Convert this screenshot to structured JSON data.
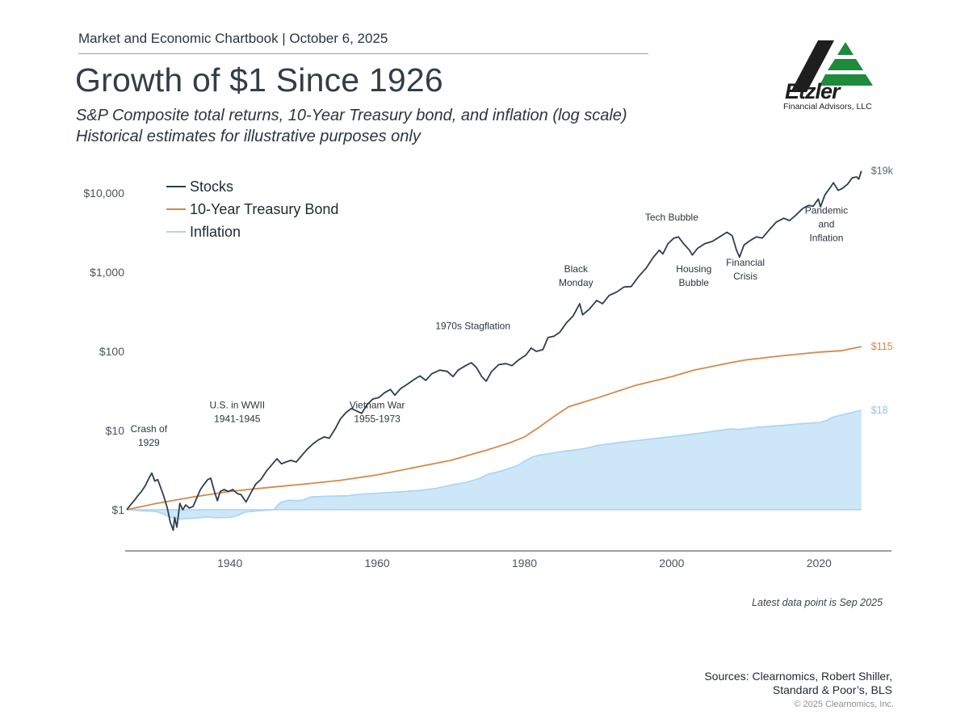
{
  "header": {
    "chartbook": "Market and Economic Chartbook | October 6, 2025",
    "title": "Growth of $1 Since 1926",
    "subtitle_line1": "S&P Composite total returns, 10-Year Treasury bond, and inflation (log scale)",
    "subtitle_line2": "Historical estimates for illustrative purposes only"
  },
  "logo": {
    "name": "Etzler",
    "caption": "Financial Advisors, LLC",
    "colors": {
      "dark": "#1e1e1e",
      "green": "#1e8a3c"
    }
  },
  "footer": {
    "latest_note": "Latest data point is Sep 2025",
    "sources_line1": "Sources: Clearnomics, Robert Shiller,",
    "sources_line2": "Standard & Poor’s, BLS",
    "copyright": "© 2025 Clearnomics, Inc."
  },
  "chart_data": {
    "type": "line",
    "title": "Growth of $1 Since 1926",
    "xlabel": "",
    "ylabel": "",
    "yscale": "log",
    "ylim": [
      0.45,
      22000
    ],
    "xlim": [
      1926,
      2030
    ],
    "grid": false,
    "legend_position": "top-left",
    "x_ticks": [
      1940,
      1960,
      1980,
      2000,
      2020
    ],
    "y_ticks": [
      {
        "value": 1,
        "label": "$1"
      },
      {
        "value": 10,
        "label": "$10"
      },
      {
        "value": 100,
        "label": "$100"
      },
      {
        "value": 1000,
        "label": "$1,000"
      },
      {
        "value": 10000,
        "label": "$10,000"
      }
    ],
    "series": [
      {
        "name": "Stocks",
        "color": "#2c3e50",
        "style": "line",
        "end_label": "$19k",
        "points": [
          [
            1926.0,
            1.0
          ],
          [
            1926.5,
            1.15
          ],
          [
            1927.0,
            1.3
          ],
          [
            1927.5,
            1.5
          ],
          [
            1928.0,
            1.7
          ],
          [
            1928.5,
            2.0
          ],
          [
            1929.0,
            2.5
          ],
          [
            1929.4,
            2.9
          ],
          [
            1929.8,
            2.3
          ],
          [
            1930.2,
            2.4
          ],
          [
            1930.6,
            1.9
          ],
          [
            1931.0,
            1.5
          ],
          [
            1931.5,
            1.05
          ],
          [
            1931.9,
            0.7
          ],
          [
            1932.3,
            0.55
          ],
          [
            1932.5,
            0.8
          ],
          [
            1932.8,
            0.6
          ],
          [
            1933.2,
            1.2
          ],
          [
            1933.6,
            1.0
          ],
          [
            1934.0,
            1.15
          ],
          [
            1934.5,
            1.05
          ],
          [
            1935.0,
            1.1
          ],
          [
            1935.5,
            1.4
          ],
          [
            1936.0,
            1.8
          ],
          [
            1936.5,
            2.1
          ],
          [
            1937.0,
            2.4
          ],
          [
            1937.4,
            2.5
          ],
          [
            1937.9,
            1.7
          ],
          [
            1938.3,
            1.3
          ],
          [
            1938.7,
            1.7
          ],
          [
            1939.2,
            1.8
          ],
          [
            1939.8,
            1.7
          ],
          [
            1940.4,
            1.8
          ],
          [
            1941.0,
            1.6
          ],
          [
            1941.5,
            1.55
          ],
          [
            1942.2,
            1.25
          ],
          [
            1942.8,
            1.6
          ],
          [
            1943.5,
            2.1
          ],
          [
            1944.2,
            2.4
          ],
          [
            1945.0,
            3.1
          ],
          [
            1945.8,
            3.8
          ],
          [
            1946.4,
            4.4
          ],
          [
            1947.0,
            3.8
          ],
          [
            1947.6,
            4.0
          ],
          [
            1948.3,
            4.2
          ],
          [
            1949.0,
            4.0
          ],
          [
            1949.8,
            4.9
          ],
          [
            1950.5,
            5.8
          ],
          [
            1951.3,
            6.8
          ],
          [
            1952.0,
            7.6
          ],
          [
            1952.8,
            8.3
          ],
          [
            1953.5,
            8.0
          ],
          [
            1954.3,
            10.5
          ],
          [
            1955.0,
            14.0
          ],
          [
            1955.8,
            17.0
          ],
          [
            1956.5,
            19.0
          ],
          [
            1957.3,
            17.5
          ],
          [
            1957.9,
            16.5
          ],
          [
            1958.6,
            21.0
          ],
          [
            1959.4,
            25.0
          ],
          [
            1960.2,
            26.0
          ],
          [
            1961.0,
            30.0
          ],
          [
            1961.8,
            33.0
          ],
          [
            1962.4,
            28.0
          ],
          [
            1963.2,
            34.0
          ],
          [
            1964.0,
            38.0
          ],
          [
            1965.0,
            44.0
          ],
          [
            1965.8,
            49.0
          ],
          [
            1966.6,
            43.0
          ],
          [
            1967.4,
            52.0
          ],
          [
            1968.5,
            58.0
          ],
          [
            1969.5,
            56.0
          ],
          [
            1970.3,
            48.0
          ],
          [
            1971.0,
            58.0
          ],
          [
            1972.0,
            66.0
          ],
          [
            1972.8,
            72.0
          ],
          [
            1973.5,
            62.0
          ],
          [
            1974.2,
            48.0
          ],
          [
            1974.8,
            42.0
          ],
          [
            1975.5,
            55.0
          ],
          [
            1976.5,
            68.0
          ],
          [
            1977.5,
            70.0
          ],
          [
            1978.3,
            66.0
          ],
          [
            1979.2,
            78.0
          ],
          [
            1980.2,
            90.0
          ],
          [
            1980.9,
            110.0
          ],
          [
            1981.6,
            100.0
          ],
          [
            1982.5,
            105.0
          ],
          [
            1983.2,
            150.0
          ],
          [
            1984.0,
            155.0
          ],
          [
            1984.8,
            175.0
          ],
          [
            1985.7,
            230.0
          ],
          [
            1986.6,
            280.0
          ],
          [
            1987.5,
            400.0
          ],
          [
            1987.9,
            290.0
          ],
          [
            1988.8,
            340.0
          ],
          [
            1989.8,
            440.0
          ],
          [
            1990.6,
            400.0
          ],
          [
            1991.5,
            510.0
          ],
          [
            1992.5,
            560.0
          ],
          [
            1993.5,
            650.0
          ],
          [
            1994.5,
            660.0
          ],
          [
            1995.5,
            880.0
          ],
          [
            1996.5,
            1120.0
          ],
          [
            1997.4,
            1500.0
          ],
          [
            1998.3,
            1900.0
          ],
          [
            1998.8,
            1700.0
          ],
          [
            1999.5,
            2300.0
          ],
          [
            2000.3,
            2700.0
          ],
          [
            2000.9,
            2800.0
          ],
          [
            2001.6,
            2300.0
          ],
          [
            2002.4,
            1900.0
          ],
          [
            2002.8,
            1650.0
          ],
          [
            2003.5,
            2000.0
          ],
          [
            2004.5,
            2300.0
          ],
          [
            2005.5,
            2450.0
          ],
          [
            2006.5,
            2800.0
          ],
          [
            2007.5,
            3200.0
          ],
          [
            2008.2,
            2900.0
          ],
          [
            2008.8,
            1900.0
          ],
          [
            2009.2,
            1550.0
          ],
          [
            2009.8,
            2200.0
          ],
          [
            2010.6,
            2500.0
          ],
          [
            2011.5,
            2800.0
          ],
          [
            2012.3,
            2700.0
          ],
          [
            2013.2,
            3400.0
          ],
          [
            2014.2,
            4300.0
          ],
          [
            2015.2,
            4800.0
          ],
          [
            2016.0,
            4500.0
          ],
          [
            2016.8,
            5200.0
          ],
          [
            2017.8,
            6400.0
          ],
          [
            2018.6,
            7000.0
          ],
          [
            2019.2,
            6800.0
          ],
          [
            2019.9,
            8400.0
          ],
          [
            2020.2,
            6700.0
          ],
          [
            2020.8,
            9500.0
          ],
          [
            2021.6,
            12000.0
          ],
          [
            2021.95,
            13500.0
          ],
          [
            2022.6,
            10800.0
          ],
          [
            2023.2,
            11500.0
          ],
          [
            2023.9,
            13000.0
          ],
          [
            2024.5,
            15500.0
          ],
          [
            2025.1,
            16000.0
          ],
          [
            2025.4,
            15000.0
          ],
          [
            2025.75,
            19000.0
          ]
        ]
      },
      {
        "name": "10-Year Treasury Bond",
        "color": "#d4894a",
        "style": "line",
        "end_label": "$115",
        "points": [
          [
            1926,
            1.0
          ],
          [
            1930,
            1.2
          ],
          [
            1935,
            1.45
          ],
          [
            1940,
            1.7
          ],
          [
            1945,
            1.9
          ],
          [
            1950,
            2.1
          ],
          [
            1955,
            2.35
          ],
          [
            1960,
            2.75
          ],
          [
            1965,
            3.4
          ],
          [
            1970,
            4.2
          ],
          [
            1975,
            5.7
          ],
          [
            1978,
            7.0
          ],
          [
            1980,
            8.3
          ],
          [
            1982,
            11.0
          ],
          [
            1984,
            15.0
          ],
          [
            1986,
            20.0
          ],
          [
            1990,
            26.0
          ],
          [
            1995,
            37.0
          ],
          [
            2000,
            48.0
          ],
          [
            2003,
            58.0
          ],
          [
            2008,
            72.0
          ],
          [
            2010,
            78.0
          ],
          [
            2015,
            88.0
          ],
          [
            2020,
            98.0
          ],
          [
            2023,
            102.0
          ],
          [
            2025.75,
            115.0
          ]
        ]
      },
      {
        "name": "Inflation",
        "color": "#a9d4f5",
        "fill": "#cde6f8",
        "style": "area",
        "end_label": "$18",
        "points": [
          [
            1926,
            1.0
          ],
          [
            1928,
            0.97
          ],
          [
            1930,
            0.95
          ],
          [
            1931,
            0.88
          ],
          [
            1932,
            0.8
          ],
          [
            1933,
            0.76
          ],
          [
            1935,
            0.78
          ],
          [
            1937,
            0.81
          ],
          [
            1938,
            0.79
          ],
          [
            1940,
            0.8
          ],
          [
            1941,
            0.84
          ],
          [
            1942,
            0.93
          ],
          [
            1944,
            0.97
          ],
          [
            1946,
            1.0
          ],
          [
            1946.5,
            1.15
          ],
          [
            1947,
            1.25
          ],
          [
            1948,
            1.32
          ],
          [
            1949,
            1.3
          ],
          [
            1950,
            1.33
          ],
          [
            1951,
            1.45
          ],
          [
            1953,
            1.48
          ],
          [
            1956,
            1.5
          ],
          [
            1958,
            1.58
          ],
          [
            1960,
            1.62
          ],
          [
            1963,
            1.68
          ],
          [
            1966,
            1.76
          ],
          [
            1968,
            1.86
          ],
          [
            1970,
            2.05
          ],
          [
            1972,
            2.2
          ],
          [
            1974,
            2.5
          ],
          [
            1975,
            2.8
          ],
          [
            1977,
            3.1
          ],
          [
            1979,
            3.6
          ],
          [
            1980,
            4.1
          ],
          [
            1981,
            4.6
          ],
          [
            1982,
            4.9
          ],
          [
            1985,
            5.4
          ],
          [
            1988,
            5.9
          ],
          [
            1990,
            6.5
          ],
          [
            1993,
            7.1
          ],
          [
            1996,
            7.6
          ],
          [
            2000,
            8.4
          ],
          [
            2004,
            9.3
          ],
          [
            2008,
            10.5
          ],
          [
            2009,
            10.3
          ],
          [
            2012,
            11.1
          ],
          [
            2015,
            11.6
          ],
          [
            2018,
            12.3
          ],
          [
            2020,
            12.6
          ],
          [
            2021,
            13.4
          ],
          [
            2022,
            14.9
          ],
          [
            2025.75,
            18.0
          ]
        ]
      }
    ],
    "annotations": [
      {
        "text": [
          "Crash of",
          "1929"
        ],
        "x": 1929,
        "y": 9.5
      },
      {
        "text": [
          "U.S. in WWII",
          "1941-1945"
        ],
        "x": 1941,
        "y": 19
      },
      {
        "text": [
          "Vietnam War",
          "1955-1973"
        ],
        "x": 1960,
        "y": 19
      },
      {
        "text": [
          "1970s Stagflation"
        ],
        "x": 1973,
        "y": 190
      },
      {
        "text": [
          "Black",
          "Monday"
        ],
        "x": 1987,
        "y": 1000
      },
      {
        "text": [
          "Tech Bubble"
        ],
        "x": 2000,
        "y": 4500
      },
      {
        "text": [
          "Housing",
          "Bubble"
        ],
        "x": 2003,
        "y": 1000
      },
      {
        "text": [
          "Financial",
          "Crisis"
        ],
        "x": 2010,
        "y": 1200
      },
      {
        "text": [
          "Pandemic",
          "and",
          "Inflation"
        ],
        "x": 2021,
        "y": 5500
      }
    ]
  }
}
